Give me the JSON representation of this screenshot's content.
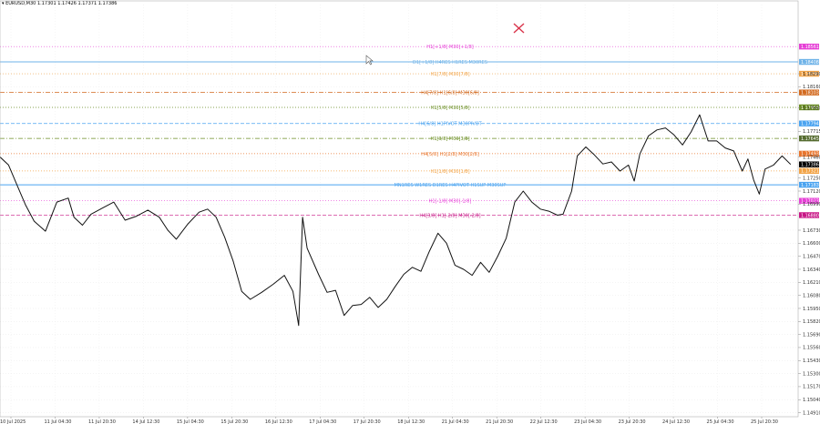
{
  "header": {
    "symbol_timeframe": "EURUSD,M30",
    "ohlc": "1.17301 1.17426 1.17371 1.17386"
  },
  "chart_data": {
    "type": "line",
    "symbol": "EURUSD",
    "timeframe": "M30",
    "ylim": [
      1.1487,
      1.1898
    ],
    "grid": true,
    "price_ticks": [
      "1.18290",
      "1.18160",
      "1.17950",
      "1.17715",
      "1.17460",
      "1.17250",
      "1.17120",
      "1.16990",
      "1.16730",
      "1.16600",
      "1.16470",
      "1.16340",
      "1.16210",
      "1.16080",
      "1.15950",
      "1.15820",
      "1.15690",
      "1.15560",
      "1.15430",
      "1.15300",
      "1.15170",
      "1.15040",
      "1.14910"
    ],
    "price_tick_values": [
      1.1829,
      1.1816,
      1.1795,
      1.17715,
      1.1746,
      1.1725,
      1.1712,
      1.1699,
      1.1673,
      1.166,
      1.1647,
      1.1634,
      1.1621,
      1.1608,
      1.1595,
      1.1582,
      1.1569,
      1.1556,
      1.1543,
      1.153,
      1.1517,
      1.1504,
      1.1491
    ],
    "time_labels": [
      "10 Jul 2025",
      "11 Jul 04:30",
      "11 Jul 20:30",
      "14 Jul 12:30",
      "15 Jul 04:30",
      "15 Jul 20:30",
      "16 Jul 12:30",
      "17 Jul 04:30",
      "17 Jul 20:30",
      "18 Jul 12:30",
      "21 Jul 04:30",
      "21 Jul 20:30",
      "22 Jul 12:30",
      "23 Jul 04:30",
      "23 Jul 20:30",
      "24 Jul 12:30",
      "25 Jul 04:30",
      "25 Jul 20:30"
    ],
    "levels": [
      {
        "label": "H1[+1/8] M30[+1/8]",
        "price": "1.18561",
        "value": 1.18561,
        "color": "#e63fd6",
        "dash": "dot",
        "tag_bg": "#e63fd6"
      },
      {
        "label": "D1[+1/8] H4RES H1RES M30RES",
        "price": "1.18408",
        "value": 1.18408,
        "color": "#6fb3e8",
        "dash": "solid",
        "tag_bg": "#6fb3e8"
      },
      {
        "label": "H1[7/8] M30[7/8]",
        "price": "1.18290",
        "value": 1.1829,
        "color": "#f2a346",
        "dash": "dot",
        "tag_bg": "#f2a346"
      },
      {
        "label": "H4[7/8] H1[6/8] M30[6/8]",
        "price": "1.18103",
        "value": 1.18103,
        "color": "#d2691e",
        "dash": "dashdot",
        "tag_bg": "#d2691e"
      },
      {
        "label": "H1[5/8] M30[5/8]",
        "price": "1.17955",
        "value": 1.17955,
        "color": "#6b8e23",
        "dash": "dot",
        "tag_bg": "#6b8e23"
      },
      {
        "label": "H4[6/8] H1PIVOT M30PIVOT",
        "price": "1.17794",
        "value": 1.17794,
        "color": "#4aa3f0",
        "dash": "dash",
        "tag_bg": "#4aa3f0"
      },
      {
        "label": "H1[3/8] M30[3/8]",
        "price": "1.17645",
        "value": 1.17645,
        "color": "#6b8e23",
        "dash": "dashdot",
        "tag_bg": "#556b2f"
      },
      {
        "label": "H4[5/8] H1[2/8] M30[2/8]",
        "price": "1.17493",
        "value": 1.17493,
        "color": "#e8732a",
        "dash": "dot",
        "tag_bg": "#e8732a"
      },
      {
        "label": "H1[1/8] M30[1/8]",
        "price": "1.17321",
        "value": 1.17321,
        "color": "#f2a346",
        "dash": "dot",
        "tag_bg": "#f2a346"
      },
      {
        "label": "MN1RES W1RES D1RES H4PIVOT H1SUP M30SUP",
        "price": "1.17183",
        "value": 1.17183,
        "color": "#4aa3f0",
        "dash": "solid",
        "tag_bg": "#4aa3f0"
      },
      {
        "label": "H1[-1/8] M30[-1/8]",
        "price": "1.17023",
        "value": 1.17023,
        "color": "#e63fd6",
        "dash": "dot",
        "tag_bg": "#e63fd6"
      },
      {
        "label": "H4[3/8] H1[-2/8] M30[-2/8]",
        "price": "1.16880",
        "value": 1.1688,
        "color": "#c71585",
        "dash": "dash",
        "tag_bg": "#c71585"
      }
    ],
    "current_price": "1.17386",
    "current_price_value": 1.17386,
    "price_series": [
      {
        "t": 0,
        "p": 1.1746
      },
      {
        "t": 1.5,
        "p": 1.1738
      },
      {
        "t": 3,
        "p": 1.1718
      },
      {
        "t": 4.5,
        "p": 1.1698
      },
      {
        "t": 6,
        "p": 1.1682
      },
      {
        "t": 8,
        "p": 1.1672
      },
      {
        "t": 10,
        "p": 1.1701
      },
      {
        "t": 12,
        "p": 1.1705
      },
      {
        "t": 13,
        "p": 1.1686
      },
      {
        "t": 14.5,
        "p": 1.1678
      },
      {
        "t": 16,
        "p": 1.1689
      },
      {
        "t": 18,
        "p": 1.1695
      },
      {
        "t": 20,
        "p": 1.1701
      },
      {
        "t": 22,
        "p": 1.1683
      },
      {
        "t": 24,
        "p": 1.1687
      },
      {
        "t": 26,
        "p": 1.1693
      },
      {
        "t": 28,
        "p": 1.1686
      },
      {
        "t": 29.5,
        "p": 1.1673
      },
      {
        "t": 31,
        "p": 1.1664
      },
      {
        "t": 33,
        "p": 1.1679
      },
      {
        "t": 35,
        "p": 1.1691
      },
      {
        "t": 36.5,
        "p": 1.1694
      },
      {
        "t": 38,
        "p": 1.1686
      },
      {
        "t": 39.5,
        "p": 1.1666
      },
      {
        "t": 41,
        "p": 1.1642
      },
      {
        "t": 42.5,
        "p": 1.1612
      },
      {
        "t": 44,
        "p": 1.1604
      },
      {
        "t": 46,
        "p": 1.1611
      },
      {
        "t": 48,
        "p": 1.1619
      },
      {
        "t": 50,
        "p": 1.1628
      },
      {
        "t": 51.5,
        "p": 1.1612
      },
      {
        "t": 52.5,
        "p": 1.1578
      },
      {
        "t": 53.2,
        "p": 1.1686
      },
      {
        "t": 54,
        "p": 1.1655
      },
      {
        "t": 56,
        "p": 1.1629
      },
      {
        "t": 57.5,
        "p": 1.1611
      },
      {
        "t": 59,
        "p": 1.1613
      },
      {
        "t": 60.5,
        "p": 1.1588
      },
      {
        "t": 62,
        "p": 1.1598
      },
      {
        "t": 63.5,
        "p": 1.1599
      },
      {
        "t": 65,
        "p": 1.1606
      },
      {
        "t": 66.5,
        "p": 1.1596
      },
      {
        "t": 68,
        "p": 1.1604
      },
      {
        "t": 69.5,
        "p": 1.1617
      },
      {
        "t": 71,
        "p": 1.1629
      },
      {
        "t": 72.5,
        "p": 1.1636
      },
      {
        "t": 74,
        "p": 1.1632
      },
      {
        "t": 75.5,
        "p": 1.1652
      },
      {
        "t": 77,
        "p": 1.167
      },
      {
        "t": 78.5,
        "p": 1.166
      },
      {
        "t": 80,
        "p": 1.1638
      },
      {
        "t": 81.5,
        "p": 1.1634
      },
      {
        "t": 83,
        "p": 1.1628
      },
      {
        "t": 84.5,
        "p": 1.1641
      },
      {
        "t": 86,
        "p": 1.1631
      },
      {
        "t": 87.5,
        "p": 1.1647
      },
      {
        "t": 89,
        "p": 1.1665
      },
      {
        "t": 90.5,
        "p": 1.1701
      },
      {
        "t": 92,
        "p": 1.1712
      },
      {
        "t": 93.5,
        "p": 1.1701
      },
      {
        "t": 95,
        "p": 1.1694
      },
      {
        "t": 96.5,
        "p": 1.1692
      },
      {
        "t": 98,
        "p": 1.1688
      },
      {
        "t": 99,
        "p": 1.1689
      },
      {
        "t": 100.5,
        "p": 1.1712
      },
      {
        "t": 101.5,
        "p": 1.1747
      },
      {
        "t": 103,
        "p": 1.1756
      },
      {
        "t": 104.5,
        "p": 1.1748
      },
      {
        "t": 106,
        "p": 1.1739
      },
      {
        "t": 107.5,
        "p": 1.1741
      },
      {
        "t": 109,
        "p": 1.1732
      },
      {
        "t": 110.5,
        "p": 1.1738
      },
      {
        "t": 111.5,
        "p": 1.1722
      },
      {
        "t": 112.5,
        "p": 1.1749
      },
      {
        "t": 114,
        "p": 1.1767
      },
      {
        "t": 115.5,
        "p": 1.1773
      },
      {
        "t": 117,
        "p": 1.1775
      },
      {
        "t": 118.5,
        "p": 1.1768
      },
      {
        "t": 120,
        "p": 1.1758
      },
      {
        "t": 121.5,
        "p": 1.1771
      },
      {
        "t": 123,
        "p": 1.1788
      },
      {
        "t": 124.5,
        "p": 1.1762
      },
      {
        "t": 126,
        "p": 1.1762
      },
      {
        "t": 127.5,
        "p": 1.1755
      },
      {
        "t": 129,
        "p": 1.1752
      },
      {
        "t": 130.5,
        "p": 1.1732
      },
      {
        "t": 131.5,
        "p": 1.1744
      },
      {
        "t": 132.5,
        "p": 1.1723
      },
      {
        "t": 133.5,
        "p": 1.1709
      },
      {
        "t": 134.5,
        "p": 1.1734
      },
      {
        "t": 136,
        "p": 1.1738
      },
      {
        "t": 137.5,
        "p": 1.1747
      },
      {
        "t": 139,
        "p": 1.17386
      }
    ]
  }
}
